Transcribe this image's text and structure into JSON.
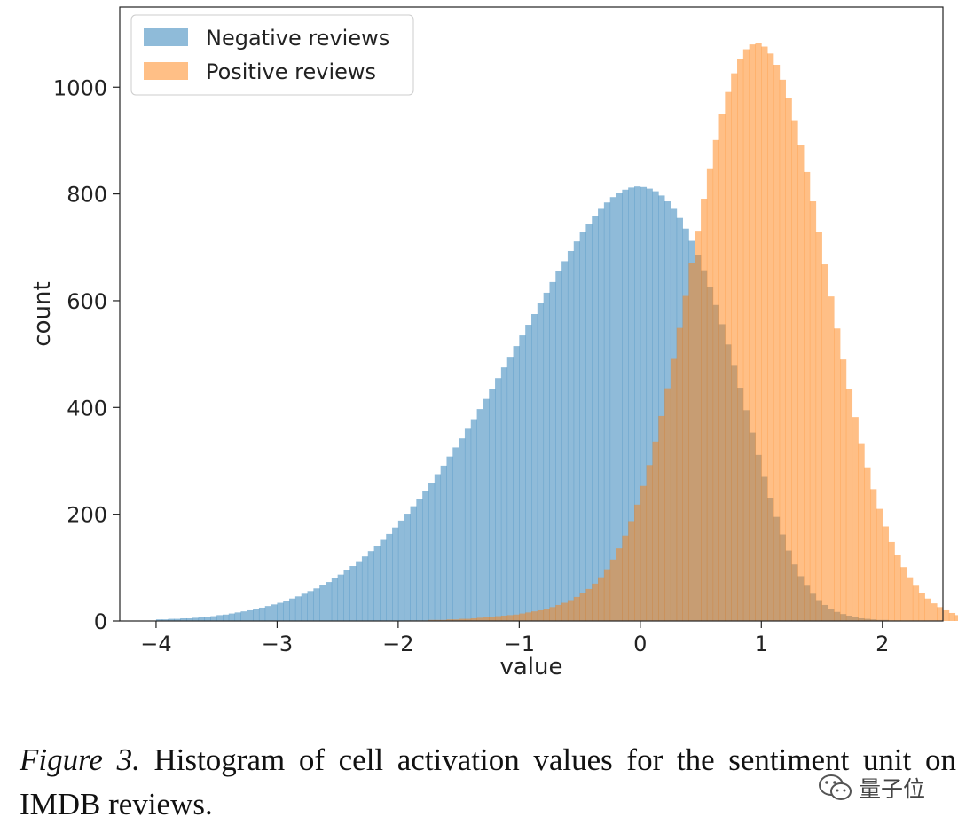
{
  "chart_data": {
    "type": "bar",
    "xlabel": "value",
    "ylabel": "count",
    "xlim": [
      -4.3,
      2.5
    ],
    "ylim": [
      0,
      1150
    ],
    "xticks": [
      -4,
      -3,
      -2,
      -1,
      0,
      1,
      2
    ],
    "xtick_labels": [
      "−4",
      "−3",
      "−2",
      "−1",
      "0",
      "1",
      "2"
    ],
    "yticks": [
      0,
      200,
      400,
      600,
      800,
      1000
    ],
    "ytick_labels": [
      "0",
      "200",
      "400",
      "600",
      "800",
      "1000"
    ],
    "bin_width": 0.05,
    "grid": false,
    "legend": "top-left",
    "series": [
      {
        "name": "Negative reviews",
        "color": "#1f77b4",
        "opacity": 0.5,
        "bin_start": -4.0,
        "counts": [
          3,
          3,
          4,
          4,
          5,
          5,
          6,
          7,
          8,
          9,
          11,
          12,
          14,
          16,
          18,
          20,
          22,
          25,
          28,
          31,
          34,
          38,
          42,
          46,
          51,
          56,
          61,
          67,
          73,
          80,
          87,
          95,
          103,
          112,
          121,
          131,
          141,
          152,
          163,
          175,
          188,
          201,
          215,
          229,
          244,
          259,
          275,
          291,
          308,
          325,
          342,
          360,
          378,
          397,
          416,
          435,
          455,
          475,
          495,
          515,
          535,
          555,
          575,
          595,
          615,
          635,
          655,
          674,
          693,
          711,
          728,
          744,
          759,
          772,
          784,
          794,
          802,
          808,
          812,
          814,
          813,
          810,
          805,
          797,
          786,
          772,
          755,
          735,
          712,
          686,
          657,
          626,
          592,
          556,
          518,
          478,
          437,
          395,
          353,
          311,
          270,
          231,
          195,
          162,
          132,
          106,
          84,
          66,
          51,
          39,
          30,
          23,
          17,
          13,
          10,
          7,
          5,
          4,
          3,
          2,
          2,
          1,
          1,
          1,
          1,
          1,
          0,
          0,
          0,
          0,
          0
        ]
      },
      {
        "name": "Positive reviews",
        "color": "#ff7f0e",
        "opacity": 0.5,
        "bin_start": -2.0,
        "counts": [
          0,
          1,
          1,
          1,
          1,
          2,
          2,
          2,
          3,
          3,
          4,
          4,
          5,
          6,
          7,
          8,
          9,
          10,
          11,
          12,
          14,
          16,
          18,
          20,
          23,
          26,
          30,
          34,
          39,
          45,
          52,
          60,
          70,
          82,
          97,
          115,
          136,
          160,
          187,
          218,
          253,
          292,
          336,
          384,
          436,
          491,
          549,
          609,
          670,
          731,
          791,
          848,
          901,
          949,
          991,
          1026,
          1053,
          1071,
          1080,
          1082,
          1076,
          1063,
          1042,
          1014,
          979,
          938,
          892,
          841,
          786,
          728,
          668,
          608,
          548,
          490,
          434,
          382,
          333,
          288,
          247,
          210,
          177,
          148,
          123,
          101,
          82,
          66,
          53,
          42,
          33,
          26,
          20,
          15,
          11,
          8,
          6,
          4,
          3,
          2,
          2,
          1,
          1,
          1,
          1,
          1,
          1,
          1,
          1,
          1,
          1,
          0,
          0,
          0,
          0,
          0,
          0,
          0,
          0,
          0,
          0,
          0,
          0,
          0,
          0,
          0,
          0,
          0,
          0,
          0,
          0,
          0,
          0,
          0,
          0,
          0,
          0,
          0,
          0,
          0,
          0
        ]
      }
    ]
  },
  "caption": {
    "label": "Figure 3.",
    "text": " Histogram of cell activation values for the sentiment unit on IMDB reviews."
  },
  "watermark": {
    "text": "量子位",
    "icon": "wechat-icon"
  }
}
